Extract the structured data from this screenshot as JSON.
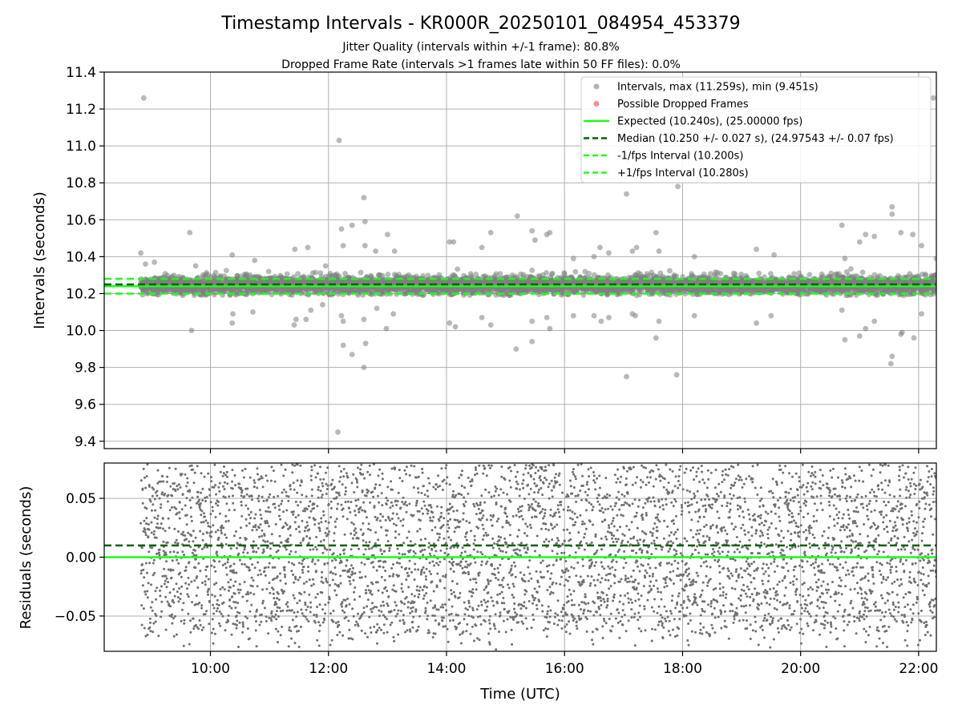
{
  "title": "Timestamp Intervals - KR000R_20250101_084954_453379",
  "subtitle_1": "Jitter Quality (intervals within +/-1 frame): 80.8%",
  "subtitle_2": "Dropped Frame Rate (intervals >1 frames late within 50 FF files): 0.0%",
  "colors": {
    "points": "#808080",
    "dropped": "#ff4040",
    "expected": "#1aff1a",
    "median": "#006400",
    "bounds": "#1aff1a",
    "grid": "#b0b0b0"
  },
  "chart_data": [
    {
      "type": "scatter",
      "panel": "intervals",
      "ylabel": "Intervals (seconds)",
      "xlabel": "",
      "x_range_hours": [
        8.2,
        22.3
      ],
      "ylim": [
        9.36,
        11.4
      ],
      "yticks": [
        9.4,
        9.6,
        9.8,
        10.0,
        10.2,
        10.4,
        10.6,
        10.8,
        11.0,
        11.2,
        11.4
      ],
      "ytick_labels": [
        "9.4",
        "9.6",
        "9.8",
        "10.0",
        "10.2",
        "10.4",
        "10.6",
        "10.8",
        "11.0",
        "11.2",
        "11.4"
      ],
      "xticks_hours": [
        10,
        12,
        14,
        16,
        18,
        20,
        22
      ],
      "grid": true,
      "legend_placement": "top-right",
      "legend": [
        {
          "label": "Intervals, max (11.259s), min (9.451s)",
          "marker": "dot",
          "color": "#808080"
        },
        {
          "label": "Possible Dropped Frames",
          "marker": "dot",
          "color": "#ff4040"
        },
        {
          "label": "Expected (10.240s), (25.00000 fps)",
          "marker": "solid",
          "color": "#1aff1a"
        },
        {
          "label": "Median (10.250 +/- 0.027 s), (24.97543 +/- 0.07 fps)",
          "marker": "dashed",
          "color": "#006400"
        },
        {
          "label": "-1/fps Interval (10.200s)",
          "marker": "dashed",
          "color": "#1aff1a"
        },
        {
          "label": "+1/fps Interval (10.280s)",
          "marker": "dashed",
          "color": "#1aff1a"
        }
      ],
      "expected": 10.24,
      "median": 10.25,
      "lower_bound": 10.2,
      "upper_bound": 10.28,
      "time_start_hours": 8.82,
      "time_end_hours": 22.3,
      "point_count_estimate": 4700,
      "core_distribution": {
        "center": 10.245,
        "spread": 0.025
      },
      "outliers": [
        {
          "x": 8.87,
          "y": 11.26
        },
        {
          "x": 8.82,
          "y": 10.42
        },
        {
          "x": 8.9,
          "y": 10.36
        },
        {
          "x": 9.05,
          "y": 10.37
        },
        {
          "x": 9.65,
          "y": 10.53
        },
        {
          "x": 9.75,
          "y": 10.35
        },
        {
          "x": 9.68,
          "y": 10.0
        },
        {
          "x": 10.37,
          "y": 10.41
        },
        {
          "x": 10.38,
          "y": 10.09
        },
        {
          "x": 10.37,
          "y": 10.04
        },
        {
          "x": 10.75,
          "y": 10.38
        },
        {
          "x": 10.72,
          "y": 10.1
        },
        {
          "x": 11.43,
          "y": 10.44
        },
        {
          "x": 11.45,
          "y": 10.06
        },
        {
          "x": 11.42,
          "y": 10.03
        },
        {
          "x": 11.65,
          "y": 10.45
        },
        {
          "x": 11.62,
          "y": 10.06
        },
        {
          "x": 11.7,
          "y": 10.11
        },
        {
          "x": 11.95,
          "y": 10.35
        },
        {
          "x": 11.9,
          "y": 10.14
        },
        {
          "x": 12.18,
          "y": 11.03
        },
        {
          "x": 12.16,
          "y": 9.45
        },
        {
          "x": 12.22,
          "y": 10.55
        },
        {
          "x": 12.25,
          "y": 10.46
        },
        {
          "x": 12.22,
          "y": 10.08
        },
        {
          "x": 12.25,
          "y": 10.05
        },
        {
          "x": 12.25,
          "y": 9.92
        },
        {
          "x": 12.4,
          "y": 10.57
        },
        {
          "x": 12.4,
          "y": 9.87
        },
        {
          "x": 12.6,
          "y": 10.72
        },
        {
          "x": 12.62,
          "y": 10.59
        },
        {
          "x": 12.62,
          "y": 10.46
        },
        {
          "x": 12.6,
          "y": 10.06
        },
        {
          "x": 12.6,
          "y": 9.8
        },
        {
          "x": 12.63,
          "y": 9.93
        },
        {
          "x": 12.8,
          "y": 10.43
        },
        {
          "x": 12.82,
          "y": 10.12
        },
        {
          "x": 13.0,
          "y": 10.52
        },
        {
          "x": 12.98,
          "y": 10.01
        },
        {
          "x": 13.12,
          "y": 10.43
        },
        {
          "x": 13.1,
          "y": 10.09
        },
        {
          "x": 14.05,
          "y": 10.48
        },
        {
          "x": 14.12,
          "y": 10.48
        },
        {
          "x": 14.05,
          "y": 10.04
        },
        {
          "x": 14.15,
          "y": 10.02
        },
        {
          "x": 14.6,
          "y": 10.45
        },
        {
          "x": 14.6,
          "y": 10.07
        },
        {
          "x": 14.75,
          "y": 10.53
        },
        {
          "x": 14.75,
          "y": 10.03
        },
        {
          "x": 15.2,
          "y": 10.62
        },
        {
          "x": 15.18,
          "y": 9.9
        },
        {
          "x": 15.45,
          "y": 10.54
        },
        {
          "x": 15.5,
          "y": 10.49
        },
        {
          "x": 15.45,
          "y": 10.05
        },
        {
          "x": 15.45,
          "y": 9.94
        },
        {
          "x": 15.7,
          "y": 10.52
        },
        {
          "x": 15.75,
          "y": 10.53
        },
        {
          "x": 15.7,
          "y": 10.07
        },
        {
          "x": 15.75,
          "y": 10.01
        },
        {
          "x": 16.15,
          "y": 10.39
        },
        {
          "x": 16.15,
          "y": 10.08
        },
        {
          "x": 16.5,
          "y": 10.4
        },
        {
          "x": 16.5,
          "y": 10.08
        },
        {
          "x": 16.6,
          "y": 10.45
        },
        {
          "x": 16.62,
          "y": 10.05
        },
        {
          "x": 16.75,
          "y": 10.42
        },
        {
          "x": 16.75,
          "y": 10.07
        },
        {
          "x": 17.05,
          "y": 10.74
        },
        {
          "x": 17.05,
          "y": 9.75
        },
        {
          "x": 17.15,
          "y": 10.43
        },
        {
          "x": 17.22,
          "y": 10.45
        },
        {
          "x": 17.15,
          "y": 10.09
        },
        {
          "x": 17.2,
          "y": 10.08
        },
        {
          "x": 17.55,
          "y": 10.53
        },
        {
          "x": 17.6,
          "y": 10.43
        },
        {
          "x": 17.55,
          "y": 9.96
        },
        {
          "x": 17.6,
          "y": 10.05
        },
        {
          "x": 17.92,
          "y": 10.78
        },
        {
          "x": 17.9,
          "y": 9.76
        },
        {
          "x": 18.2,
          "y": 10.4
        },
        {
          "x": 18.2,
          "y": 10.08
        },
        {
          "x": 19.25,
          "y": 10.44
        },
        {
          "x": 19.25,
          "y": 10.04
        },
        {
          "x": 19.55,
          "y": 10.41
        },
        {
          "x": 19.5,
          "y": 10.08
        },
        {
          "x": 20.7,
          "y": 10.57
        },
        {
          "x": 20.75,
          "y": 10.39
        },
        {
          "x": 20.7,
          "y": 10.11
        },
        {
          "x": 20.75,
          "y": 9.95
        },
        {
          "x": 21.0,
          "y": 10.48
        },
        {
          "x": 21.1,
          "y": 10.52
        },
        {
          "x": 21.0,
          "y": 9.97
        },
        {
          "x": 21.1,
          "y": 10.01
        },
        {
          "x": 21.25,
          "y": 10.51
        },
        {
          "x": 21.25,
          "y": 10.05
        },
        {
          "x": 21.55,
          "y": 10.67
        },
        {
          "x": 21.55,
          "y": 10.63
        },
        {
          "x": 21.55,
          "y": 9.86
        },
        {
          "x": 21.53,
          "y": 9.82
        },
        {
          "x": 21.7,
          "y": 10.53
        },
        {
          "x": 21.7,
          "y": 9.98
        },
        {
          "x": 21.72,
          "y": 9.99
        },
        {
          "x": 21.9,
          "y": 10.52
        },
        {
          "x": 21.92,
          "y": 9.96
        },
        {
          "x": 22.05,
          "y": 10.46
        },
        {
          "x": 22.05,
          "y": 10.09
        },
        {
          "x": 22.25,
          "y": 11.26
        },
        {
          "x": 22.3,
          "y": 10.39
        }
      ]
    },
    {
      "type": "scatter",
      "panel": "residuals",
      "ylabel": "Residuals (seconds)",
      "xlabel": "Time (UTC)",
      "x_range_hours": [
        8.2,
        22.3
      ],
      "ylim": [
        -0.08,
        0.08
      ],
      "yticks": [
        -0.05,
        0.0,
        0.05
      ],
      "ytick_labels": [
        "−0.05",
        "0.00",
        "0.05"
      ],
      "xticks_hours": [
        10,
        12,
        14,
        16,
        18,
        20,
        22
      ],
      "xtick_labels": [
        "10:00",
        "12:00",
        "14:00",
        "16:00",
        "18:00",
        "20:00",
        "22:00"
      ],
      "grid": true,
      "zero_line": 0.0,
      "median_offset": 0.01,
      "point_count_estimate": 4700,
      "residual_range": [
        -0.08,
        0.08
      ]
    }
  ]
}
